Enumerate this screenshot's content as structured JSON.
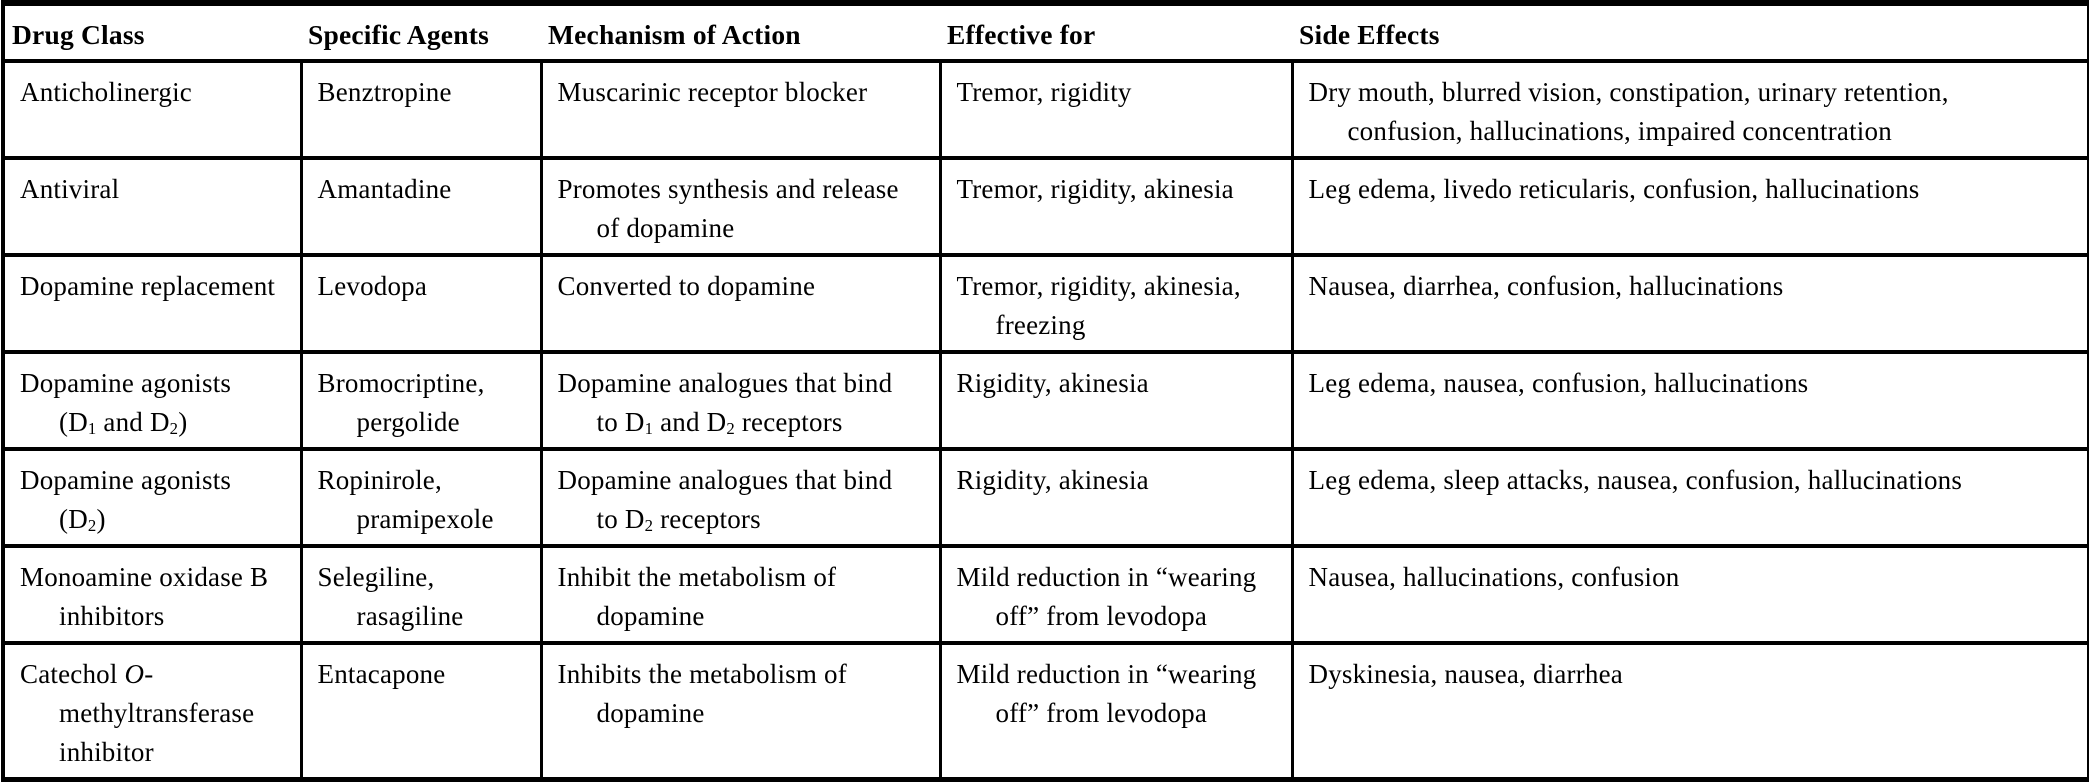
{
  "colors": {
    "background": "#ffffff",
    "text": "#000000",
    "border": "#000000"
  },
  "table": {
    "headers": [
      "Drug Class",
      "Specific Agents",
      "Mechanism of Action",
      "Effective for",
      "Side Effects"
    ],
    "rows": [
      {
        "drug_class": [
          "Anticholinergic"
        ],
        "agents": [
          "Benztropine"
        ],
        "mechanism": [
          "Muscarinic receptor blocker"
        ],
        "effective_for": [
          "Tremor, rigidity"
        ],
        "side_effects": [
          "Dry mouth, blurred vision, constipation, urinary retention,",
          "confusion, hallucinations, impaired concentration"
        ]
      },
      {
        "drug_class": [
          "Antiviral"
        ],
        "agents": [
          "Amantadine"
        ],
        "mechanism": [
          "Promotes synthesis and release",
          "of dopamine"
        ],
        "effective_for": [
          "Tremor, rigidity, akinesia"
        ],
        "side_effects": [
          "Leg edema, livedo reticularis, confusion, hallucinations"
        ]
      },
      {
        "drug_class": [
          "Dopamine replacement"
        ],
        "agents": [
          "Levodopa"
        ],
        "mechanism": [
          "Converted to dopamine"
        ],
        "effective_for": [
          "Tremor, rigidity, akinesia,",
          "freezing"
        ],
        "side_effects": [
          "Nausea, diarrhea, confusion, hallucinations"
        ]
      },
      {
        "drug_class": [
          "Dopamine agonists",
          "(D~1~ and D~2~)"
        ],
        "agents": [
          "Bromocriptine,",
          "pergolide"
        ],
        "mechanism": [
          "Dopamine analogues that bind",
          "to D~1~ and D~2~ receptors"
        ],
        "effective_for": [
          "Rigidity, akinesia"
        ],
        "side_effects": [
          "Leg edema, nausea, confusion, hallucinations"
        ]
      },
      {
        "drug_class": [
          "Dopamine agonists",
          "(D~2~)"
        ],
        "agents": [
          "Ropinirole,",
          "pramipexole"
        ],
        "mechanism": [
          "Dopamine analogues that bind",
          "to D~2~ receptors"
        ],
        "effective_for": [
          "Rigidity, akinesia"
        ],
        "side_effects": [
          "Leg edema, sleep attacks, nausea, confusion, hallucinations"
        ]
      },
      {
        "drug_class": [
          "Monoamine oxidase B",
          "inhibitors"
        ],
        "agents": [
          "Selegiline,",
          "rasagiline"
        ],
        "mechanism": [
          "Inhibit the metabolism of",
          "dopamine"
        ],
        "effective_for": [
          "Mild reduction in “wearing",
          "off” from levodopa"
        ],
        "side_effects": [
          "Nausea, hallucinations, confusion"
        ]
      },
      {
        "drug_class": [
          "Catechol *O*-",
          "methyltransferase",
          "inhibitor"
        ],
        "agents": [
          "Entacapone"
        ],
        "mechanism": [
          "Inhibits the metabolism of",
          "dopamine"
        ],
        "effective_for": [
          "Mild reduction in “wearing",
          "off” from levodopa"
        ],
        "side_effects": [
          "Dyskinesia, nausea, diarrhea"
        ]
      }
    ]
  }
}
